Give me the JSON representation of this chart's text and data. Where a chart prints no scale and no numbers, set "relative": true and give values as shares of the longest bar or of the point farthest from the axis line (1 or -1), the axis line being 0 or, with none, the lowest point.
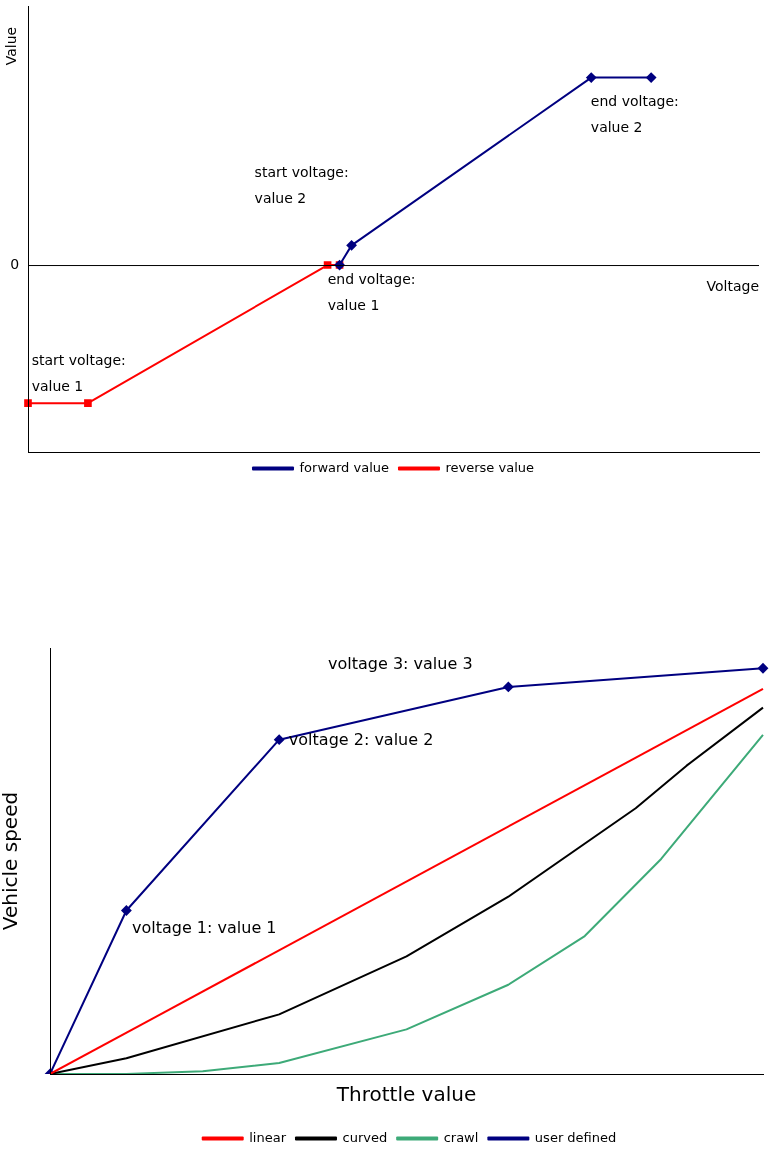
{
  "chart_data": [
    {
      "type": "line",
      "relative": true,
      "ylabel": "Value",
      "xlabel": "Voltage",
      "legend": "bottom",
      "categories": [
        null,
        null,
        null,
        null,
        null,
        null,
        null,
        null,
        null,
        null,
        null,
        null,
        null,
        null,
        null,
        null,
        null,
        null,
        null,
        null,
        null,
        null,
        null,
        null,
        null,
        null,
        null,
        null,
        null,
        null,
        null,
        null,
        null,
        null,
        null,
        null,
        null,
        null,
        null,
        null,
        null,
        null,
        null,
        null,
        null,
        null,
        null,
        null,
        null,
        null,
        null,
        null,
        null,
        null,
        null,
        null,
        null,
        null,
        null,
        null,
        null,
        null
      ],
      "series": [
        {
          "name": "forward value",
          "color": "#000080",
          "marker": "diamond",
          "values": [
            null,
            null,
            null,
            null,
            null,
            null,
            null,
            null,
            null,
            null,
            null,
            null,
            null,
            null,
            null,
            null,
            null,
            null,
            null,
            null,
            null,
            null,
            null,
            null,
            null,
            null,
            0,
            0.105,
            null,
            null,
            null,
            null,
            null,
            null,
            null,
            null,
            null,
            null,
            null,
            null,
            null,
            null,
            null,
            null,
            null,
            null,
            null,
            1,
            null,
            null,
            null,
            null,
            1,
            null,
            null,
            null,
            null,
            null,
            null,
            null,
            null,
            null
          ]
        },
        {
          "name": "reverse value",
          "color": "#ff0000",
          "marker": "square",
          "values": [
            -0.737,
            null,
            null,
            null,
            null,
            -0.737,
            null,
            null,
            null,
            null,
            null,
            null,
            null,
            null,
            null,
            null,
            null,
            null,
            null,
            null,
            null,
            null,
            null,
            null,
            null,
            0,
            0,
            null,
            null,
            null,
            null,
            null,
            null,
            null,
            null,
            null,
            null,
            null,
            null,
            null,
            null,
            null,
            null,
            null,
            null,
            null,
            null,
            null,
            null,
            null,
            null,
            null,
            null,
            null,
            null,
            null,
            null,
            null,
            null,
            null,
            null,
            null
          ]
        }
      ],
      "annotations": [
        "0",
        "start voltage:\nvalue 1",
        "end voltage:\nvalue 1",
        "start voltage:\nvalue 2",
        "end voltage:\nvalue 2"
      ]
    },
    {
      "type": "line",
      "relative": true,
      "ylabel": "Vehicle speed",
      "xlabel": "Throttle value",
      "legend": "bottom",
      "categories": [
        null,
        null,
        null,
        null,
        null,
        null,
        null,
        null,
        null,
        null,
        null,
        null,
        null,
        null,
        null,
        null,
        null,
        null,
        null,
        null,
        null,
        null,
        null,
        null,
        null,
        null,
        null,
        null,
        null
      ],
      "series": [
        {
          "name": "linear",
          "color": "#ff0000",
          "marker": "none",
          "values": [
            0,
            null,
            null,
            null,
            null,
            null,
            null,
            null,
            null,
            null,
            null,
            null,
            null,
            null,
            null,
            null,
            null,
            null,
            null,
            null,
            null,
            null,
            null,
            null,
            null,
            null,
            null,
            null,
            0.949
          ]
        },
        {
          "name": "curved",
          "color": "#000000",
          "marker": "none",
          "values": [
            0,
            null,
            null,
            0.039,
            null,
            null,
            null,
            null,
            null,
            0.147,
            null,
            null,
            null,
            null,
            0.29,
            null,
            null,
            null,
            0.437,
            null,
            null,
            null,
            null,
            0.655,
            null,
            0.76,
            null,
            null,
            0.903
          ]
        },
        {
          "name": "crawl",
          "color": "#3daa78",
          "marker": "none",
          "values": [
            0,
            null,
            null,
            0,
            null,
            null,
            0.007,
            null,
            null,
            0.027,
            null,
            null,
            null,
            null,
            0.11,
            null,
            null,
            null,
            0.22,
            null,
            null,
            0.34,
            null,
            null,
            0.53,
            null,
            null,
            null,
            0.836
          ]
        },
        {
          "name": "user defined",
          "color": "#000080",
          "marker": "diamond",
          "values": [
            0,
            null,
            null,
            0.403,
            null,
            null,
            null,
            null,
            null,
            0.824,
            null,
            null,
            null,
            null,
            null,
            null,
            null,
            null,
            0.954,
            null,
            null,
            null,
            null,
            null,
            null,
            null,
            null,
            null,
            1
          ]
        }
      ],
      "annotations": [
        "voltage 1: value 1",
        "voltage 2: value 2",
        "voltage 3: value 3"
      ]
    }
  ]
}
